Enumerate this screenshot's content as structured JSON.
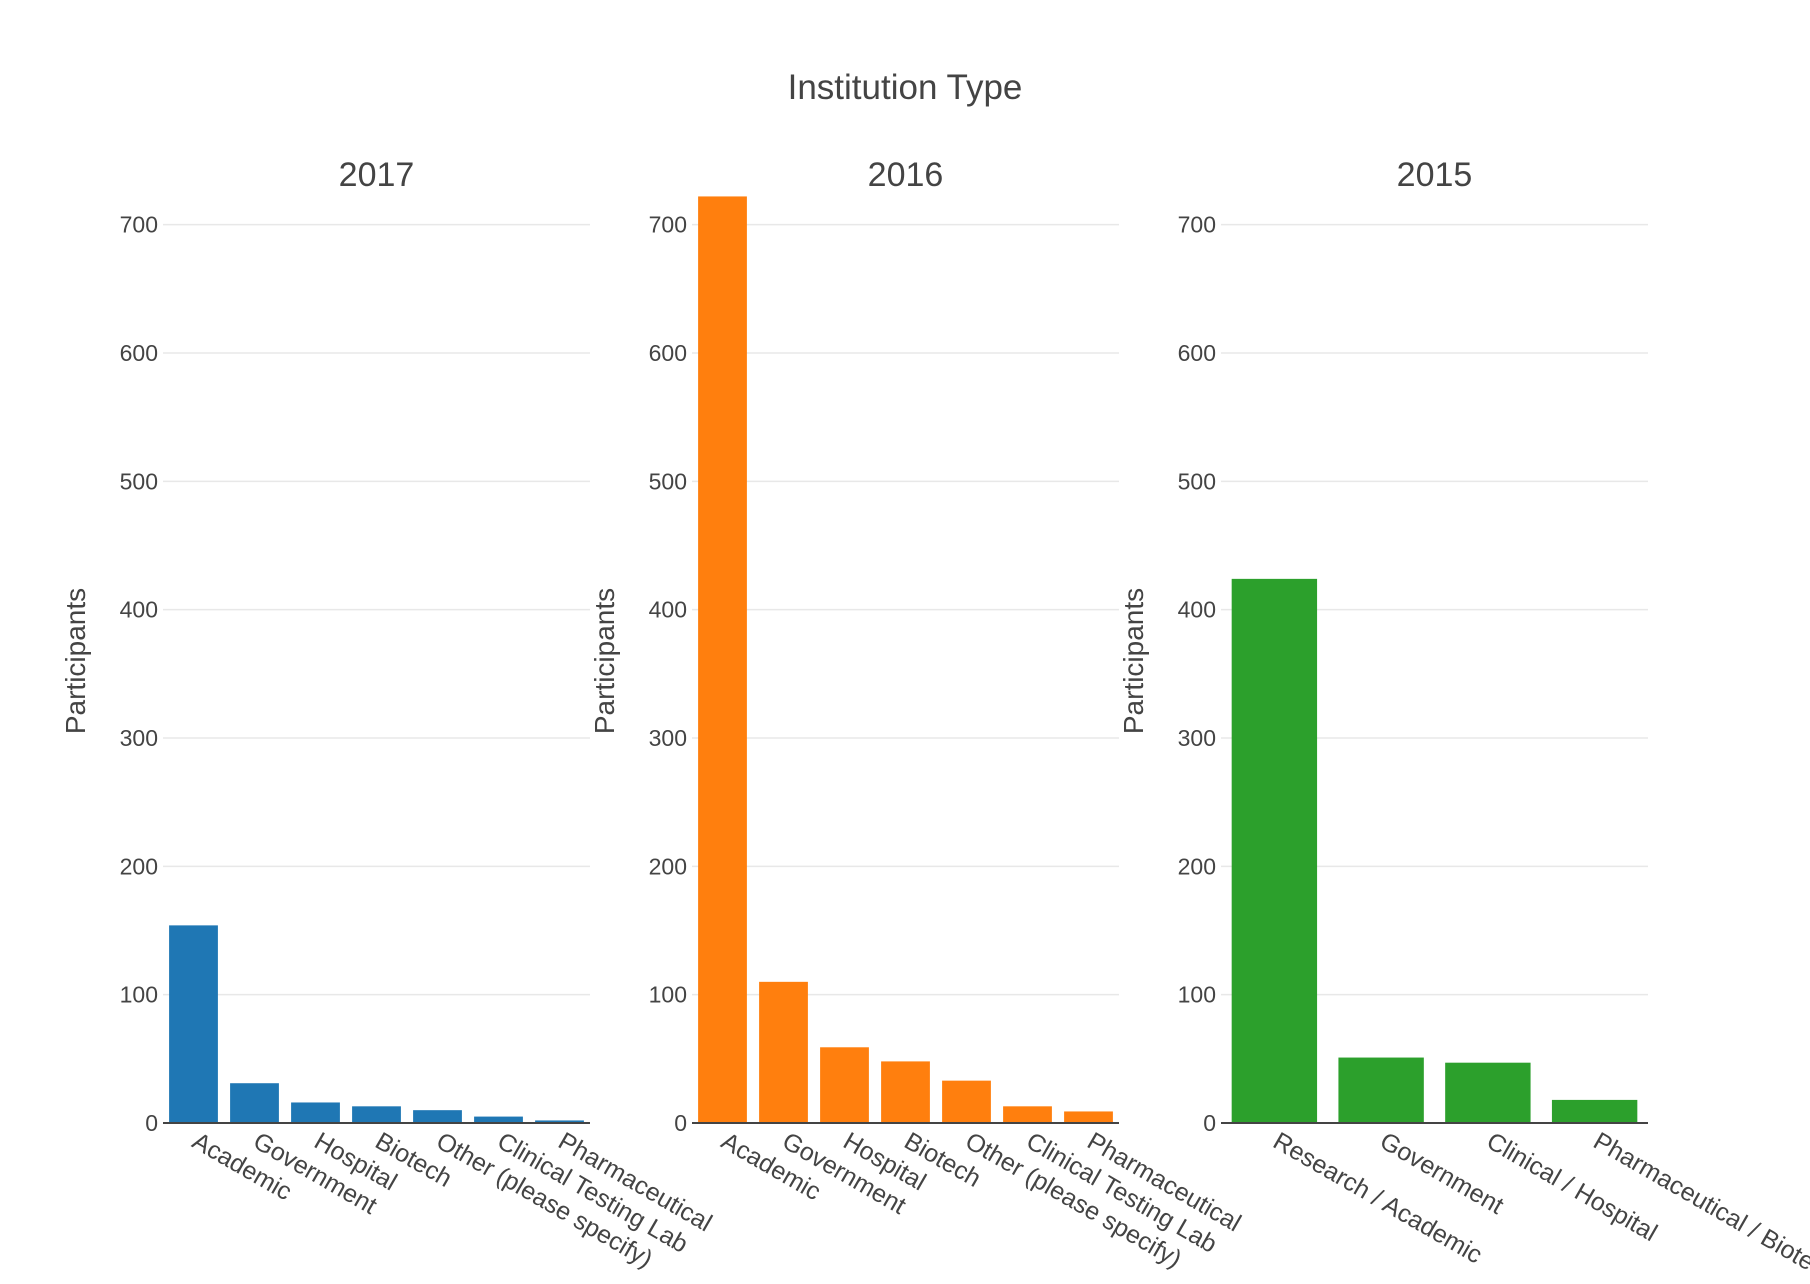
{
  "chart_data": {
    "type": "bar",
    "title": "Institution Type",
    "ylabel": "Participants",
    "ylim": [
      0,
      720
    ],
    "yticks": [
      0,
      100,
      200,
      300,
      400,
      500,
      600,
      700
    ],
    "grid": true,
    "legend": "none",
    "subplots": [
      {
        "title": "2017",
        "color": "#1f77b4",
        "categories": [
          "Academic",
          "Government",
          "Hospital",
          "Biotech",
          "Other (please specify)",
          "Clinical Testing Lab",
          "Pharmaceutical"
        ],
        "values": [
          154,
          31,
          16,
          13,
          10,
          5,
          2
        ]
      },
      {
        "title": "2016",
        "color": "#ff7f0e",
        "categories": [
          "Academic",
          "Government",
          "Hospital",
          "Biotech",
          "Other (please specify)",
          "Clinical Testing Lab",
          "Pharmaceutical"
        ],
        "values": [
          722,
          110,
          59,
          48,
          33,
          13,
          9
        ]
      },
      {
        "title": "2015",
        "color": "#2ca02c",
        "categories": [
          "Research / Academic",
          "Government",
          "Clinical / Hospital",
          "Pharmaceutical / Biotech"
        ],
        "values": [
          424,
          51,
          47,
          18
        ]
      }
    ]
  }
}
